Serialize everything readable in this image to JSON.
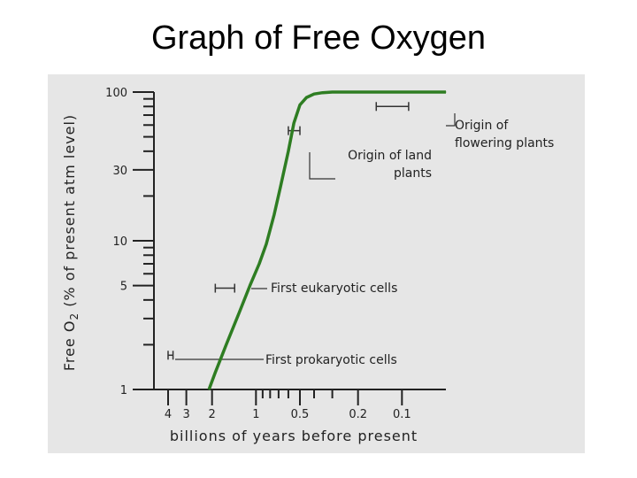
{
  "title": "Graph of Free Oxygen",
  "chart_data": {
    "type": "line",
    "xlabel": "billions of years before present",
    "ylabel_main": "Free O",
    "ylabel_sub": "2",
    "ylabel_rest": " (% of present atm level)",
    "x_scale": "log-reversed",
    "y_scale": "log",
    "xlim": [
      5,
      0.05
    ],
    "ylim": [
      1,
      100
    ],
    "x_ticks": [
      {
        "value": 4,
        "label": "4"
      },
      {
        "value": 3,
        "label": "3"
      },
      {
        "value": 2,
        "label": "2"
      },
      {
        "value": 1,
        "label": "1"
      },
      {
        "value": 0.5,
        "label": "0.5"
      },
      {
        "value": 0.2,
        "label": "0.2"
      },
      {
        "value": 0.1,
        "label": "0.1"
      }
    ],
    "y_ticks": [
      {
        "value": 100,
        "label": "100"
      },
      {
        "value": 30,
        "label": "30"
      },
      {
        "value": 10,
        "label": "10"
      },
      {
        "value": 5,
        "label": "5"
      },
      {
        "value": 1,
        "label": "1"
      }
    ],
    "series": [
      {
        "color": "#2e7d22",
        "x": [
          2.1,
          1.9,
          1.6,
          1.3,
          1.1,
          0.95,
          0.85,
          0.75,
          0.68,
          0.6,
          0.55,
          0.5,
          0.45,
          0.4,
          0.35,
          0.3,
          0.2,
          0.15,
          0.1,
          0.05
        ],
        "y": [
          1.0,
          1.3,
          2.0,
          3.3,
          5.0,
          7.0,
          9.5,
          15,
          23,
          40,
          62,
          82,
          92,
          97,
          99,
          100,
          100,
          100,
          100,
          100
        ]
      }
    ],
    "annotations": [
      {
        "lines": [
          "Origin of",
          "flowering plants"
        ],
        "x_range": [
          0.15,
          0.09
        ],
        "y": 80
      },
      {
        "lines": [
          "Origin of land",
          "plants"
        ],
        "x_range": [
          0.6,
          0.5
        ],
        "y": 55
      },
      {
        "lines": [
          "First eukaryotic cells"
        ],
        "x_range": [
          1.9,
          1.4
        ],
        "y": 4.8
      },
      {
        "lines": [
          "First prokaryotic cells"
        ],
        "x_range": [
          4.0,
          3.7
        ],
        "y": 1.7
      }
    ]
  }
}
